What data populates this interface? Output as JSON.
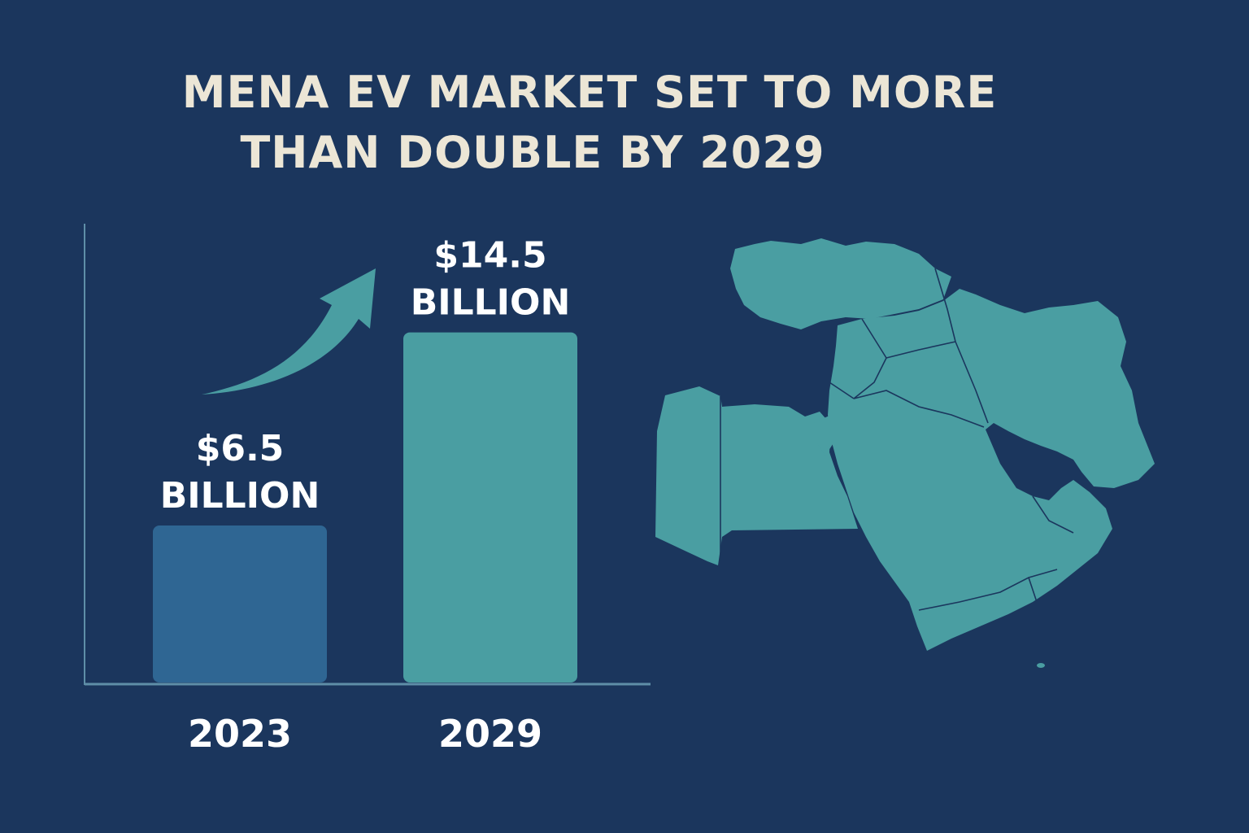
{
  "title": {
    "line1": "MENA EV MARKET SET TO MORE",
    "line2": "THAN DOUBLE BY 2029"
  },
  "colors": {
    "background": "#1b365d",
    "title_text": "#ece6d6",
    "bar_2023": "#2f6693",
    "bar_2029": "#4a9ea2",
    "arrow": "#4a9ea2",
    "map_fill": "#4a9ea2",
    "axis": "#5f8fa8",
    "label_text": "#ffffff"
  },
  "chart_data": {
    "type": "bar",
    "categories": [
      "2023",
      "2029"
    ],
    "values": [
      6.5,
      14.5
    ],
    "unit": "billion USD",
    "data_labels": [
      {
        "amount": "$6.5",
        "unit": "BILLION"
      },
      {
        "amount": "$14.5",
        "unit": "BILLION"
      }
    ],
    "xlabel": "",
    "ylabel": "",
    "ylim": [
      0,
      19
    ],
    "grid": false,
    "legend": "none",
    "annotation": "upward-trend-arrow"
  },
  "map": {
    "region_icon": "middle-east-north-africa-map"
  }
}
